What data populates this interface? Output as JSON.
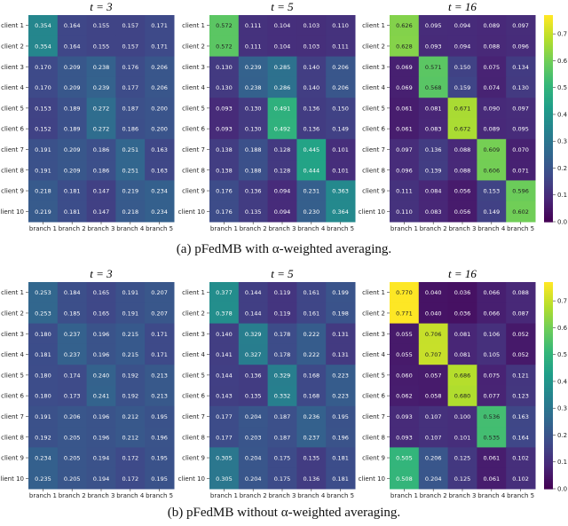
{
  "chart_data": [
    {
      "type": "heatmap",
      "group": "a",
      "title": "t = 3",
      "x_categories": [
        "branch 1",
        "branch 2",
        "branch 3",
        "branch 4",
        "branch 5"
      ],
      "y_categories": [
        "client 1",
        "client 2",
        "client 3",
        "client 4",
        "client 5",
        "client 6",
        "client 7",
        "client 8",
        "client 9",
        "client 10"
      ],
      "values": [
        [
          0.354,
          0.164,
          0.155,
          0.157,
          0.171
        ],
        [
          0.354,
          0.164,
          0.155,
          0.157,
          0.171
        ],
        [
          0.17,
          0.209,
          0.238,
          0.176,
          0.206
        ],
        [
          0.17,
          0.209,
          0.239,
          0.177,
          0.206
        ],
        [
          0.153,
          0.189,
          0.272,
          0.187,
          0.2
        ],
        [
          0.152,
          0.189,
          0.272,
          0.186,
          0.2
        ],
        [
          0.191,
          0.209,
          0.186,
          0.251,
          0.163
        ],
        [
          0.191,
          0.209,
          0.186,
          0.251,
          0.163
        ],
        [
          0.218,
          0.181,
          0.147,
          0.219,
          0.234
        ],
        [
          0.219,
          0.181,
          0.147,
          0.218,
          0.234
        ]
      ]
    },
    {
      "type": "heatmap",
      "group": "a",
      "title": "t = 5",
      "x_categories": [
        "branch 1",
        "branch 2",
        "branch 3",
        "branch 4",
        "branch 5"
      ],
      "y_categories": [
        "client 1",
        "client 2",
        "client 3",
        "client 4",
        "client 5",
        "client 6",
        "client 7",
        "client 8",
        "client 9",
        "client 10"
      ],
      "values": [
        [
          0.572,
          0.111,
          0.104,
          0.103,
          0.11
        ],
        [
          0.572,
          0.111,
          0.104,
          0.103,
          0.111
        ],
        [
          0.13,
          0.239,
          0.285,
          0.14,
          0.206
        ],
        [
          0.13,
          0.238,
          0.286,
          0.14,
          0.206
        ],
        [
          0.093,
          0.13,
          0.491,
          0.136,
          0.15
        ],
        [
          0.093,
          0.13,
          0.492,
          0.136,
          0.149
        ],
        [
          0.138,
          0.188,
          0.128,
          0.445,
          0.101
        ],
        [
          0.138,
          0.188,
          0.128,
          0.444,
          0.101
        ],
        [
          0.176,
          0.136,
          0.094,
          0.231,
          0.363
        ],
        [
          0.176,
          0.135,
          0.094,
          0.23,
          0.364
        ]
      ]
    },
    {
      "type": "heatmap",
      "group": "a",
      "title": "t = 16",
      "x_categories": [
        "branch 1",
        "branch 2",
        "branch 3",
        "branch 4",
        "branch 5"
      ],
      "y_categories": [
        "client 1",
        "client 2",
        "client 3",
        "client 4",
        "client 5",
        "client 6",
        "client 7",
        "client 8",
        "client 9",
        "client 10"
      ],
      "values": [
        [
          0.626,
          0.095,
          0.094,
          0.089,
          0.097
        ],
        [
          0.628,
          0.093,
          0.094,
          0.088,
          0.096
        ],
        [
          0.069,
          0.571,
          0.15,
          0.075,
          0.134
        ],
        [
          0.069,
          0.568,
          0.159,
          0.074,
          0.13
        ],
        [
          0.061,
          0.081,
          0.671,
          0.09,
          0.097
        ],
        [
          0.061,
          0.083,
          0.672,
          0.089,
          0.095
        ],
        [
          0.097,
          0.136,
          0.088,
          0.609,
          0.07
        ],
        [
          0.096,
          0.139,
          0.088,
          0.606,
          0.071
        ],
        [
          0.111,
          0.084,
          0.056,
          0.153,
          0.596
        ],
        [
          0.11,
          0.083,
          0.056,
          0.149,
          0.602
        ]
      ],
      "colorbar": {
        "colormap": "viridis",
        "ticks": [
          "0.0",
          "0.1",
          "0.2",
          "0.3",
          "0.4",
          "0.5",
          "0.6",
          "0.7"
        ]
      }
    },
    {
      "type": "heatmap",
      "group": "b",
      "title": "t = 3",
      "x_categories": [
        "branch 1",
        "branch 2",
        "branch 3",
        "branch 4",
        "branch 5"
      ],
      "y_categories": [
        "client 1",
        "client 2",
        "client 3",
        "client 4",
        "client 5",
        "client 6",
        "client 7",
        "client 8",
        "client 9",
        "client 10"
      ],
      "values": [
        [
          0.253,
          0.184,
          0.165,
          0.191,
          0.207
        ],
        [
          0.253,
          0.185,
          0.165,
          0.191,
          0.207
        ],
        [
          0.18,
          0.237,
          0.196,
          0.215,
          0.171
        ],
        [
          0.181,
          0.237,
          0.196,
          0.215,
          0.171
        ],
        [
          0.18,
          0.174,
          0.24,
          0.192,
          0.213
        ],
        [
          0.18,
          0.173,
          0.241,
          0.192,
          0.213
        ],
        [
          0.191,
          0.206,
          0.196,
          0.212,
          0.195
        ],
        [
          0.192,
          0.205,
          0.196,
          0.212,
          0.196
        ],
        [
          0.234,
          0.205,
          0.194,
          0.172,
          0.195
        ],
        [
          0.235,
          0.205,
          0.194,
          0.172,
          0.195
        ]
      ]
    },
    {
      "type": "heatmap",
      "group": "b",
      "title": "t = 5",
      "x_categories": [
        "branch 1",
        "branch 2",
        "branch 3",
        "branch 4",
        "branch 5"
      ],
      "y_categories": [
        "client 1",
        "client 2",
        "client 3",
        "client 4",
        "client 5",
        "client 6",
        "client 7",
        "client 8",
        "client 9",
        "client 10"
      ],
      "values": [
        [
          0.377,
          0.144,
          0.119,
          0.161,
          0.199
        ],
        [
          0.378,
          0.144,
          0.119,
          0.161,
          0.198
        ],
        [
          0.14,
          0.329,
          0.178,
          0.222,
          0.131
        ],
        [
          0.141,
          0.327,
          0.178,
          0.222,
          0.131
        ],
        [
          0.144,
          0.136,
          0.329,
          0.168,
          0.223
        ],
        [
          0.143,
          0.135,
          0.332,
          0.168,
          0.223
        ],
        [
          0.177,
          0.204,
          0.187,
          0.236,
          0.195
        ],
        [
          0.177,
          0.203,
          0.187,
          0.237,
          0.196
        ],
        [
          0.305,
          0.204,
          0.175,
          0.135,
          0.181
        ],
        [
          0.305,
          0.204,
          0.175,
          0.136,
          0.181
        ]
      ]
    },
    {
      "type": "heatmap",
      "group": "b",
      "title": "t = 16",
      "x_categories": [
        "branch 1",
        "branch 2",
        "branch 3",
        "branch 4",
        "branch 5"
      ],
      "y_categories": [
        "client 1",
        "client 2",
        "client 3",
        "client 4",
        "client 5",
        "client 6",
        "client 7",
        "client 8",
        "client 9",
        "client 10"
      ],
      "values": [
        [
          0.77,
          0.04,
          0.036,
          0.066,
          0.088
        ],
        [
          0.771,
          0.04,
          0.036,
          0.066,
          0.087
        ],
        [
          0.055,
          0.706,
          0.081,
          0.106,
          0.052
        ],
        [
          0.055,
          0.707,
          0.081,
          0.105,
          0.052
        ],
        [
          0.06,
          0.057,
          0.686,
          0.075,
          0.121
        ],
        [
          0.062,
          0.058,
          0.68,
          0.077,
          0.123
        ],
        [
          0.093,
          0.107,
          0.1,
          0.536,
          0.163
        ],
        [
          0.093,
          0.107,
          0.101,
          0.535,
          0.164
        ],
        [
          0.505,
          0.206,
          0.125,
          0.061,
          0.102
        ],
        [
          0.508,
          0.204,
          0.125,
          0.061,
          0.102
        ]
      ],
      "colorbar": {
        "colormap": "viridis",
        "ticks": [
          "0.0",
          "0.1",
          "0.2",
          "0.3",
          "0.4",
          "0.5",
          "0.6",
          "0.7"
        ]
      }
    }
  ],
  "captions": {
    "a": "(a) pFedMB with α-weighted averaging.",
    "b": "(b) pFedMB without α-weighted averaging."
  }
}
